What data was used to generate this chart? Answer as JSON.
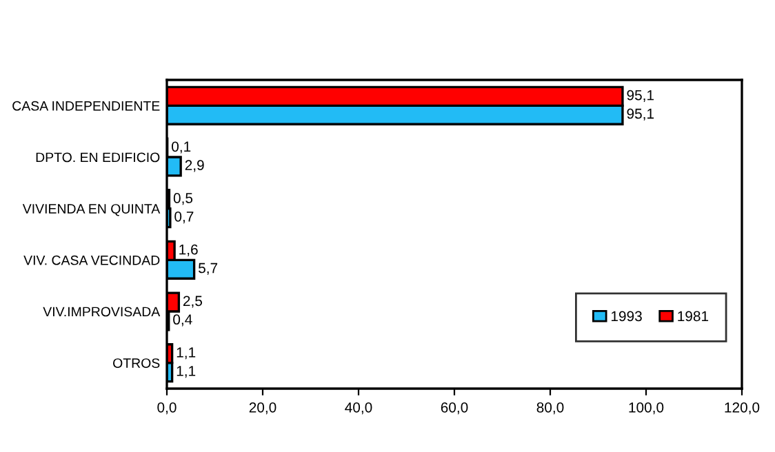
{
  "chart_data": {
    "type": "bar",
    "orientation": "horizontal",
    "categories": [
      "CASA INDEPENDIENTE",
      "DPTO. EN EDIFICIO",
      "VIVIENDA EN QUINTA",
      "VIV. CASA VECINDAD",
      "VIV.IMPROVISADA",
      "OTROS"
    ],
    "series": [
      {
        "name": "1993",
        "color": "#22bbf5",
        "values": [
          95.1,
          2.9,
          0.7,
          5.7,
          0.4,
          1.1
        ],
        "value_labels": [
          "95,1",
          "2,9",
          "0,7",
          "5,7",
          "0,4",
          "1,1"
        ]
      },
      {
        "name": "1981",
        "color": "#ff0000",
        "values": [
          95.1,
          0.1,
          0.5,
          1.6,
          2.5,
          1.1
        ],
        "value_labels": [
          "95,1",
          "0,1",
          "0,5",
          "1,6",
          "2,5",
          "1,1"
        ]
      }
    ],
    "xlim": [
      0,
      120
    ],
    "xticks": [
      {
        "value": 0,
        "label": "0,0"
      },
      {
        "value": 20,
        "label": "20,0"
      },
      {
        "value": 40,
        "label": "40,0"
      },
      {
        "value": 60,
        "label": "60,0"
      },
      {
        "value": 80,
        "label": "80,0"
      },
      {
        "value": 100,
        "label": "100,0"
      },
      {
        "value": 120,
        "label": "120,0"
      }
    ],
    "legend": "bottom right",
    "grid": false
  }
}
